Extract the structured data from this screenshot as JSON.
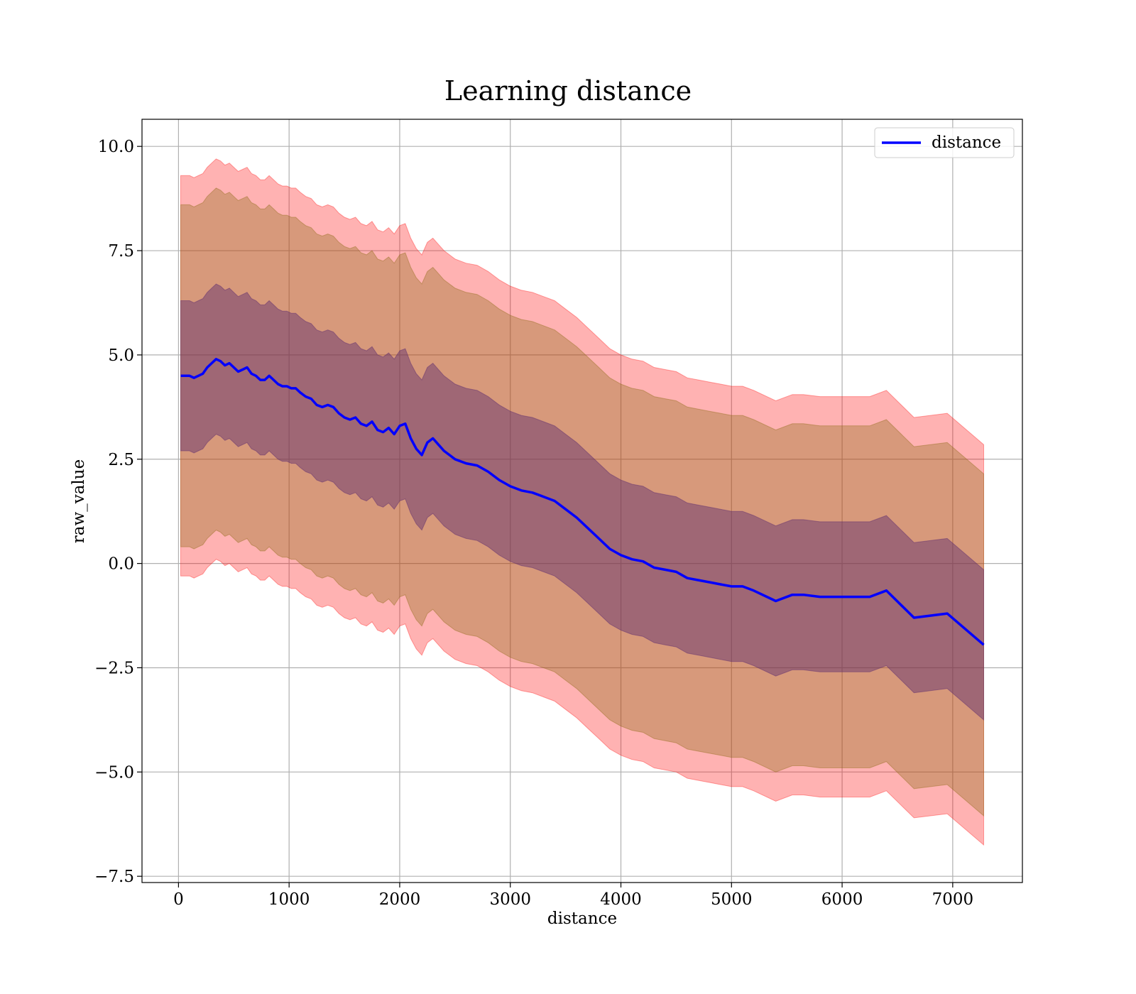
{
  "chart_data": {
    "type": "line",
    "title": "Learning distance",
    "xlabel": "distance",
    "ylabel": "raw_value",
    "xlim": [
      -330,
      7630
    ],
    "ylim": [
      -7.65,
      10.65
    ],
    "xticks": [
      0,
      1000,
      2000,
      3000,
      4000,
      5000,
      6000,
      7000
    ],
    "xtick_labels": [
      "0",
      "1000",
      "2000",
      "3000",
      "4000",
      "5000",
      "6000",
      "7000"
    ],
    "yticks": [
      -7.5,
      -5.0,
      -2.5,
      0.0,
      2.5,
      5.0,
      7.5,
      10.0
    ],
    "ytick_labels": [
      "−7.5",
      "−5.0",
      "−2.5",
      "0.0",
      "2.5",
      "5.0",
      "7.5",
      "10.0"
    ],
    "grid": true,
    "legend": {
      "placement": "top-right",
      "entries": [
        "distance"
      ]
    },
    "colors": {
      "line": "#0000ff",
      "band_outer": "#ff0000",
      "band_mid": "#8b6914",
      "band_inner": "#5a2a6e"
    },
    "band_half_widths": {
      "inner": 1.8,
      "mid": 4.1,
      "outer": 4.8
    },
    "series": [
      {
        "name": "distance",
        "x": [
          20,
          60,
          100,
          140,
          180,
          220,
          260,
          300,
          340,
          380,
          420,
          460,
          500,
          540,
          580,
          620,
          660,
          700,
          740,
          780,
          820,
          860,
          900,
          940,
          980,
          1020,
          1060,
          1100,
          1150,
          1200,
          1250,
          1300,
          1350,
          1400,
          1450,
          1500,
          1550,
          1600,
          1650,
          1700,
          1750,
          1800,
          1850,
          1900,
          1950,
          2000,
          2050,
          2100,
          2150,
          2200,
          2250,
          2300,
          2350,
          2400,
          2450,
          2500,
          2600,
          2700,
          2800,
          2900,
          3000,
          3100,
          3200,
          3300,
          3400,
          3500,
          3600,
          3700,
          3800,
          3900,
          4000,
          4100,
          4200,
          4300,
          4400,
          4500,
          4600,
          4700,
          4800,
          4900,
          5000,
          5100,
          5200,
          5400,
          5550,
          5650,
          5800,
          6000,
          6250,
          6400,
          6650,
          6950,
          7280
        ],
        "y": [
          4.5,
          4.5,
          4.5,
          4.45,
          4.5,
          4.55,
          4.7,
          4.8,
          4.9,
          4.85,
          4.75,
          4.8,
          4.7,
          4.6,
          4.65,
          4.7,
          4.55,
          4.5,
          4.4,
          4.4,
          4.5,
          4.4,
          4.3,
          4.25,
          4.25,
          4.2,
          4.2,
          4.1,
          4.0,
          3.95,
          3.8,
          3.75,
          3.8,
          3.75,
          3.6,
          3.5,
          3.45,
          3.5,
          3.35,
          3.3,
          3.4,
          3.2,
          3.15,
          3.25,
          3.1,
          3.3,
          3.35,
          3.0,
          2.75,
          2.6,
          2.9,
          3.0,
          2.85,
          2.7,
          2.6,
          2.5,
          2.4,
          2.35,
          2.2,
          2.0,
          1.85,
          1.75,
          1.7,
          1.6,
          1.5,
          1.3,
          1.1,
          0.85,
          0.6,
          0.35,
          0.2,
          0.1,
          0.05,
          -0.1,
          -0.15,
          -0.2,
          -0.35,
          -0.4,
          -0.45,
          -0.5,
          -0.55,
          -0.55,
          -0.65,
          -0.9,
          -0.75,
          -0.75,
          -0.8,
          -0.8,
          -0.8,
          -0.65,
          -1.3,
          -1.2,
          -1.95
        ]
      }
    ]
  }
}
